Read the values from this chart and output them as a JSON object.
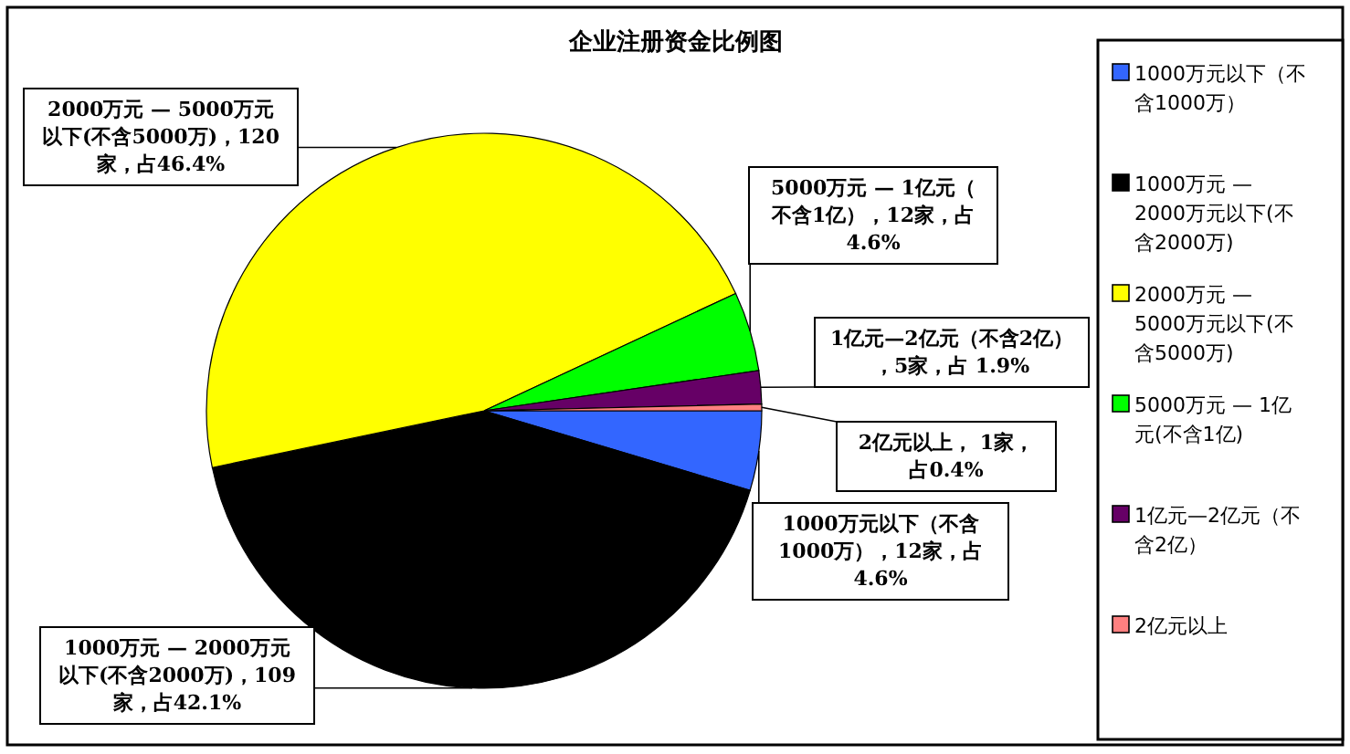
{
  "chart_data": {
    "type": "pie",
    "title": "企业注册资金比例图",
    "categories": [
      "1000万元以下（不含1000万）",
      "1000万元 — 2000万元以下(不含2000万)",
      "2000万元 — 5000万元以下(不含5000万)",
      "5000万元 — 1亿元(不含1亿)",
      "1亿元—2亿元（不含2亿）",
      "2亿元以上"
    ],
    "values": [
      12,
      109,
      120,
      12,
      5,
      1
    ],
    "colors": [
      "#3366ff",
      "#000000",
      "#ffff00",
      "#00ff00",
      "#660066",
      "#ff8080"
    ],
    "value_labels": [
      "1000万元以下（不含1000万），12家，占4.6%",
      "1000万元 — 2000万元以下(不含2000万)，109家，占42.1%",
      "2000万元 — 5000万元以下(不含5000万)，120家，占46.4%",
      "5000万元 — 1亿元（不含1亿），12家，占4.6%",
      "1亿元—2亿元（不含2亿），5家，占 1.9%",
      "2亿元以上， 1家，占0.4%"
    ],
    "legend": "right"
  }
}
